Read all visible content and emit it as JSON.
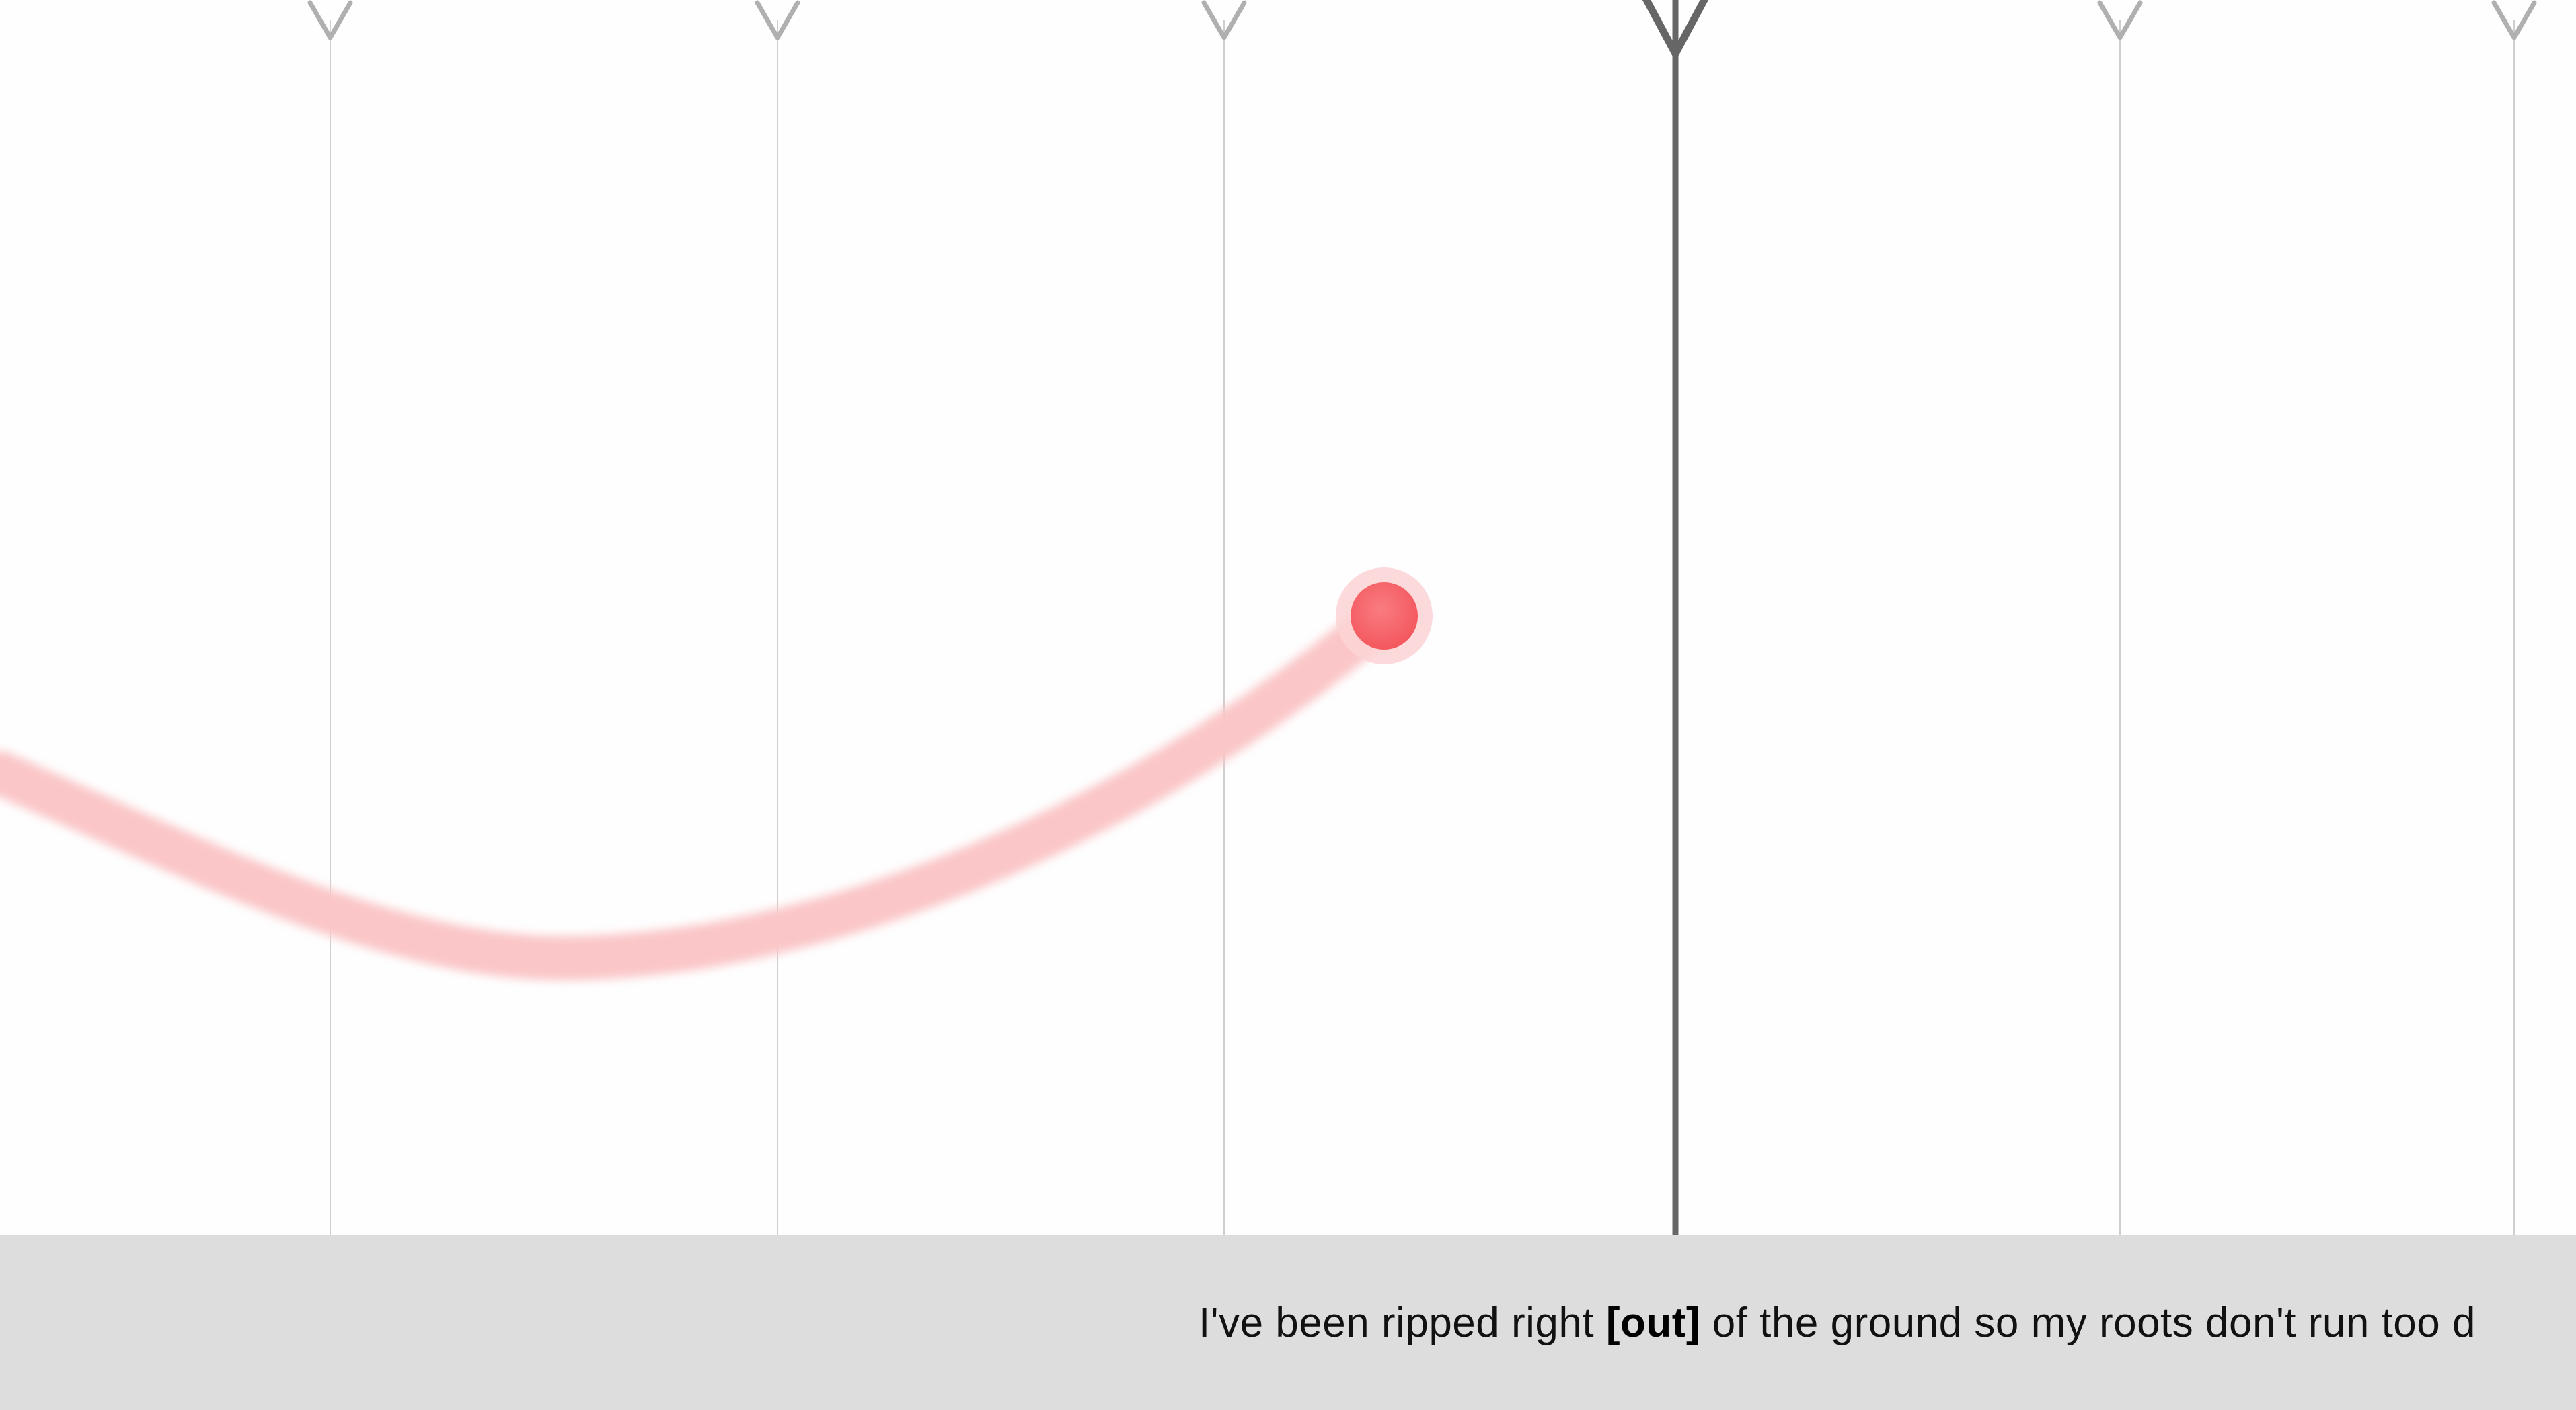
{
  "lyrics": {
    "before": "I've been ripped right ",
    "current_word": "[out]",
    "after": " of the ground so my roots don't run too d"
  },
  "colors": {
    "background": "#fefefe",
    "lyrics_bar": "#dddddd",
    "beat_line": "#cfcfcf",
    "beat_marker": "#b0b0b0",
    "playhead": "#666666",
    "pitch_trail": "#fbcacc",
    "pitch_dot": "#f66a6f",
    "pitch_dot_halo": "#fcd3d5"
  },
  "icons": {
    "beat_marker": "beat-marker-icon",
    "playhead_marker": "playhead-marker-icon"
  }
}
